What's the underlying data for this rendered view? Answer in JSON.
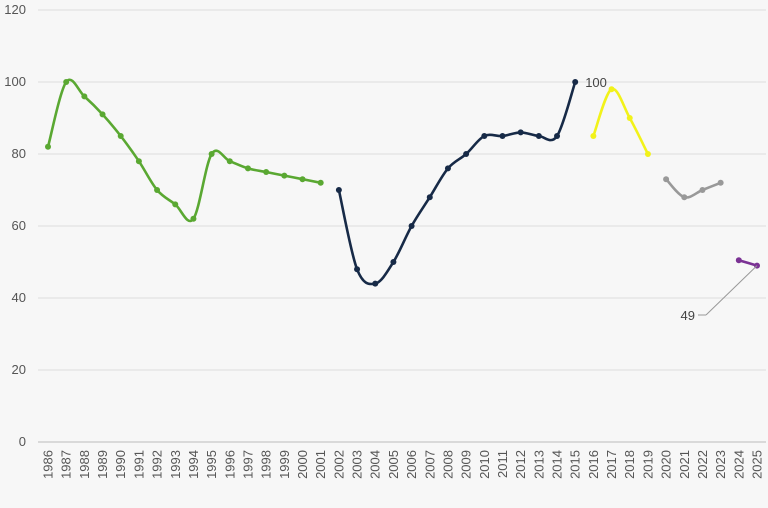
{
  "chart_data": {
    "type": "line",
    "title": "",
    "xlabel": "",
    "ylabel": "",
    "ylim": [
      0,
      120
    ],
    "yticks": [
      0,
      20,
      40,
      60,
      80,
      100,
      120
    ],
    "categories": [
      "1986",
      "1987",
      "1988",
      "1989",
      "1990",
      "1991",
      "1992",
      "1993",
      "1994",
      "1995",
      "1996",
      "1997",
      "1998",
      "1999",
      "2000",
      "2001",
      "2002",
      "2003",
      "2004",
      "2005",
      "2006",
      "2007",
      "2008",
      "2009",
      "2010",
      "2011",
      "2012",
      "2013",
      "2014",
      "2015",
      "2016",
      "2017",
      "2018",
      "2019",
      "2020",
      "2021",
      "2022",
      "2023",
      "2024",
      "2025"
    ],
    "grid": true,
    "legend": "none",
    "series": [
      {
        "color": "#5aa832",
        "points": [
          [
            "1986",
            82
          ],
          [
            "1987",
            100
          ],
          [
            "1988",
            96
          ],
          [
            "1989",
            91
          ],
          [
            "1990",
            85
          ],
          [
            "1991",
            78
          ],
          [
            "1992",
            70
          ],
          [
            "1993",
            66
          ],
          [
            "1994",
            62
          ],
          [
            "1995",
            80
          ],
          [
            "1996",
            78
          ],
          [
            "1997",
            76
          ],
          [
            "1998",
            75
          ],
          [
            "1999",
            74
          ],
          [
            "2000",
            73
          ],
          [
            "2001",
            72
          ]
        ]
      },
      {
        "color": "#172a47",
        "points": [
          [
            "2002",
            70
          ],
          [
            "2003",
            48
          ],
          [
            "2004",
            44
          ],
          [
            "2005",
            50
          ],
          [
            "2006",
            60
          ],
          [
            "2007",
            68
          ],
          [
            "2008",
            76
          ],
          [
            "2009",
            80
          ],
          [
            "2010",
            85
          ],
          [
            "2011",
            85
          ],
          [
            "2012",
            86
          ],
          [
            "2013",
            85
          ],
          [
            "2014",
            85
          ],
          [
            "2015",
            100
          ]
        ]
      },
      {
        "color": "#f2f21a",
        "points": [
          [
            "2016",
            85
          ],
          [
            "2017",
            98
          ],
          [
            "2018",
            90
          ],
          [
            "2019",
            80
          ]
        ]
      },
      {
        "color": "#999999",
        "points": [
          [
            "2020",
            73
          ],
          [
            "2021",
            68
          ],
          [
            "2022",
            70
          ],
          [
            "2023",
            72
          ]
        ]
      },
      {
        "color": "#7b3294",
        "points": [
          [
            "2024",
            50.5
          ],
          [
            "2025",
            49
          ]
        ]
      }
    ],
    "annotations": [
      {
        "text": "100",
        "x": "2015",
        "y": 100
      },
      {
        "text": "49",
        "x": "2025",
        "y": 49,
        "callout": true
      }
    ]
  }
}
